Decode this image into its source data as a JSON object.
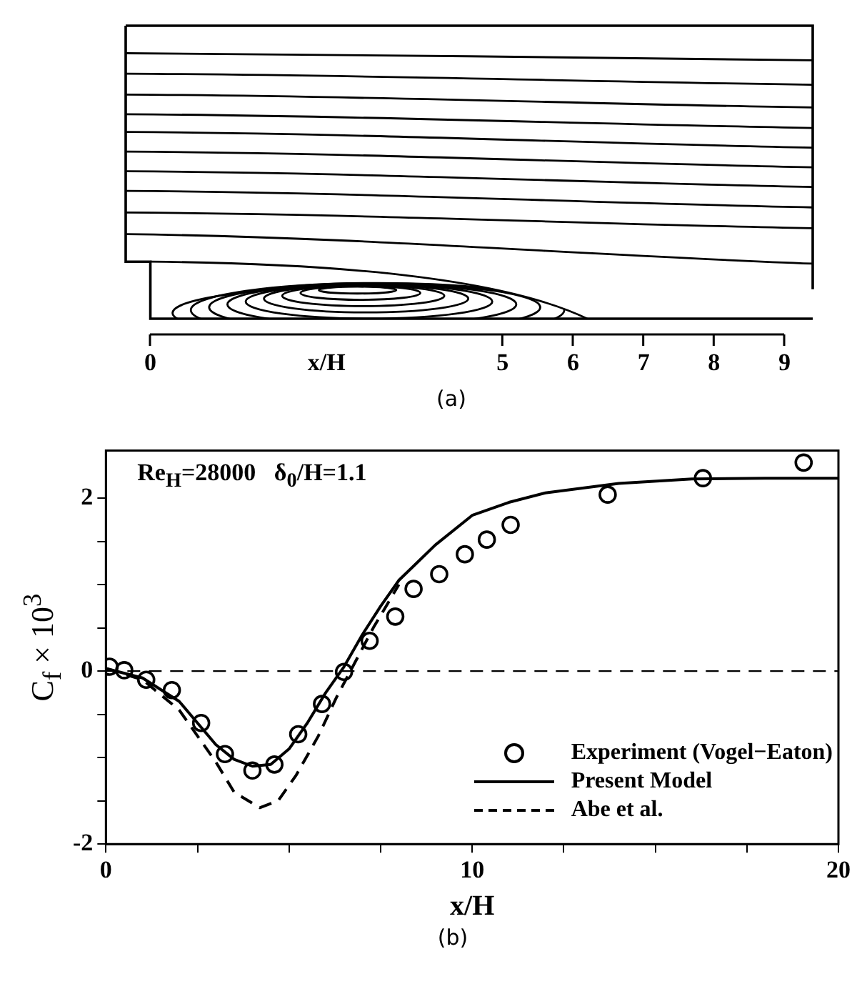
{
  "chart_data": [
    {
      "type": "other",
      "xlabel": "x/H",
      "annotations": [
        "0",
        "5",
        "6",
        "7",
        "8",
        "9",
        "(a)"
      ]
    },
    {
      "type": "line",
      "xlabel": "x/H",
      "ylabel": "C$_{f}$ × 10$^{3}$",
      "xlim": [
        0,
        20
      ],
      "ylim": [
        -2,
        2.55
      ],
      "xticks": [
        0,
        {
          "value": 2.5,
          "label": null
        },
        {
          "value": 5,
          "label": null
        },
        {
          "value": 7.5,
          "label": null
        },
        10,
        {
          "value": 12.5,
          "label": null
        },
        {
          "value": 15,
          "label": null
        },
        {
          "value": 17.5,
          "label": null
        },
        20
      ],
      "yticks": [
        -2,
        {
          "value": -1.5,
          "label": null
        },
        {
          "value": -1,
          "label": null
        },
        {
          "value": -0.5,
          "label": null
        },
        0,
        {
          "value": 0.5,
          "label": null
        },
        {
          "value": 1,
          "label": null
        },
        {
          "value": 1.5,
          "label": null
        },
        2
      ],
      "grid": false,
      "legend": "bottom right",
      "ref_lines": [
        {
          "axis": "y",
          "value": 0,
          "line_style": "dashed",
          "color": "#000000"
        }
      ],
      "annotations": [
        "Re$_{H}$=28000   δ$_{0}$/H=1.1",
        "(b)"
      ],
      "series": [
        {
          "name": "Experiment (Vogel−Eaton)",
          "type": "scatter",
          "marker": "circle",
          "color": "#000000",
          "x": [
            0.1,
            0.5,
            1.1,
            1.8,
            2.6,
            3.25,
            4.0,
            4.6,
            5.25,
            5.9,
            6.5,
            7.2,
            7.9,
            8.4,
            9.1,
            9.8,
            10.4,
            11.05,
            13.7,
            16.3,
            19.05
          ],
          "values": [
            0.05,
            0.01,
            -0.1,
            -0.22,
            -0.6,
            -0.96,
            -1.15,
            -1.08,
            -0.73,
            -0.38,
            -0.01,
            0.35,
            0.63,
            0.95,
            1.12,
            1.35,
            1.52,
            1.69,
            2.04,
            2.23,
            2.41
          ]
        },
        {
          "name": "Present Model",
          "type": "line",
          "line_style": "solid",
          "color": "#000000",
          "x": [
            0,
            1,
            2,
            2.5,
            3,
            3.5,
            4,
            4.5,
            5,
            5.5,
            6,
            6.5,
            7,
            7.5,
            8,
            9,
            10,
            11,
            12,
            14,
            16,
            18,
            20
          ],
          "values": [
            0.03,
            -0.08,
            -0.35,
            -0.6,
            -0.85,
            -1.02,
            -1.1,
            -1.08,
            -0.9,
            -0.6,
            -0.25,
            0.05,
            0.42,
            0.75,
            1.05,
            1.46,
            1.8,
            1.95,
            2.06,
            2.17,
            2.22,
            2.23,
            2.23
          ]
        },
        {
          "name": "Abe et al.",
          "type": "line",
          "line_style": "dashed",
          "color": "#000000",
          "x": [
            0,
            1,
            2,
            2.5,
            3,
            3.5,
            4.2,
            4.7,
            5.2,
            5.8,
            6.3,
            6.8,
            7.3,
            8
          ],
          "values": [
            0.03,
            -0.1,
            -0.45,
            -0.75,
            -1.05,
            -1.4,
            -1.58,
            -1.5,
            -1.2,
            -0.75,
            -0.3,
            0.1,
            0.5,
            1.0
          ]
        }
      ]
    }
  ]
}
